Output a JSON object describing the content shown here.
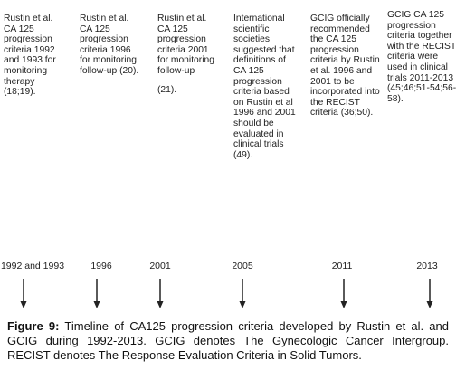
{
  "columns": [
    {
      "lines": [
        "Rustin et al.",
        "CA 125",
        "progression",
        "criteria 1992",
        "and 1993 for",
        "monitoring",
        "therapy",
        "(18;19)."
      ],
      "year": "1992 and 1993"
    },
    {
      "lines": [
        "Rustin et al.",
        "CA 125",
        "progression",
        "criteria 1996",
        "for monitoring",
        "follow-up (20)."
      ],
      "year": "1996"
    },
    {
      "lines": [
        "Rustin et al.",
        "CA 125",
        "progression",
        "criteria 2001",
        "for monitoring",
        "follow-up",
        "(21)."
      ],
      "year": "2001"
    },
    {
      "lines": [
        "International",
        "scientific",
        "societies",
        "suggested that",
        "definitions of",
        "CA 125",
        "progression",
        "criteria based",
        "on Rustin et al",
        "1996 and 2001",
        "should be",
        "evaluated in",
        "clinical trials",
        "(49)."
      ],
      "year": "2005"
    },
    {
      "lines": [
        "GCIG officially",
        "recommended",
        "the CA 125",
        "progression",
        "criteria by Rustin",
        "et al. 1996 and",
        "2001 to be",
        "incorporated into",
        "the RECIST",
        "criteria (36;50)."
      ],
      "year": "2011"
    },
    {
      "lines": [
        "GCIG CA 125",
        "progression",
        "criteria together",
        "with the RECIST",
        "criteria were",
        "used in clinical",
        "trials 2011-2013",
        "(45;46;51-54;56-",
        "58)."
      ],
      "year": "2013"
    }
  ],
  "caption": {
    "label": "Figure 9:",
    "text": "Timeline of CA125 progression criteria developed by Rustin et al. and GCIG during 1992-2013. GCIG denotes The Gynecologic Cancer Intergroup. RECIST denotes The Response Evaluation Criteria in Solid Tumors."
  }
}
